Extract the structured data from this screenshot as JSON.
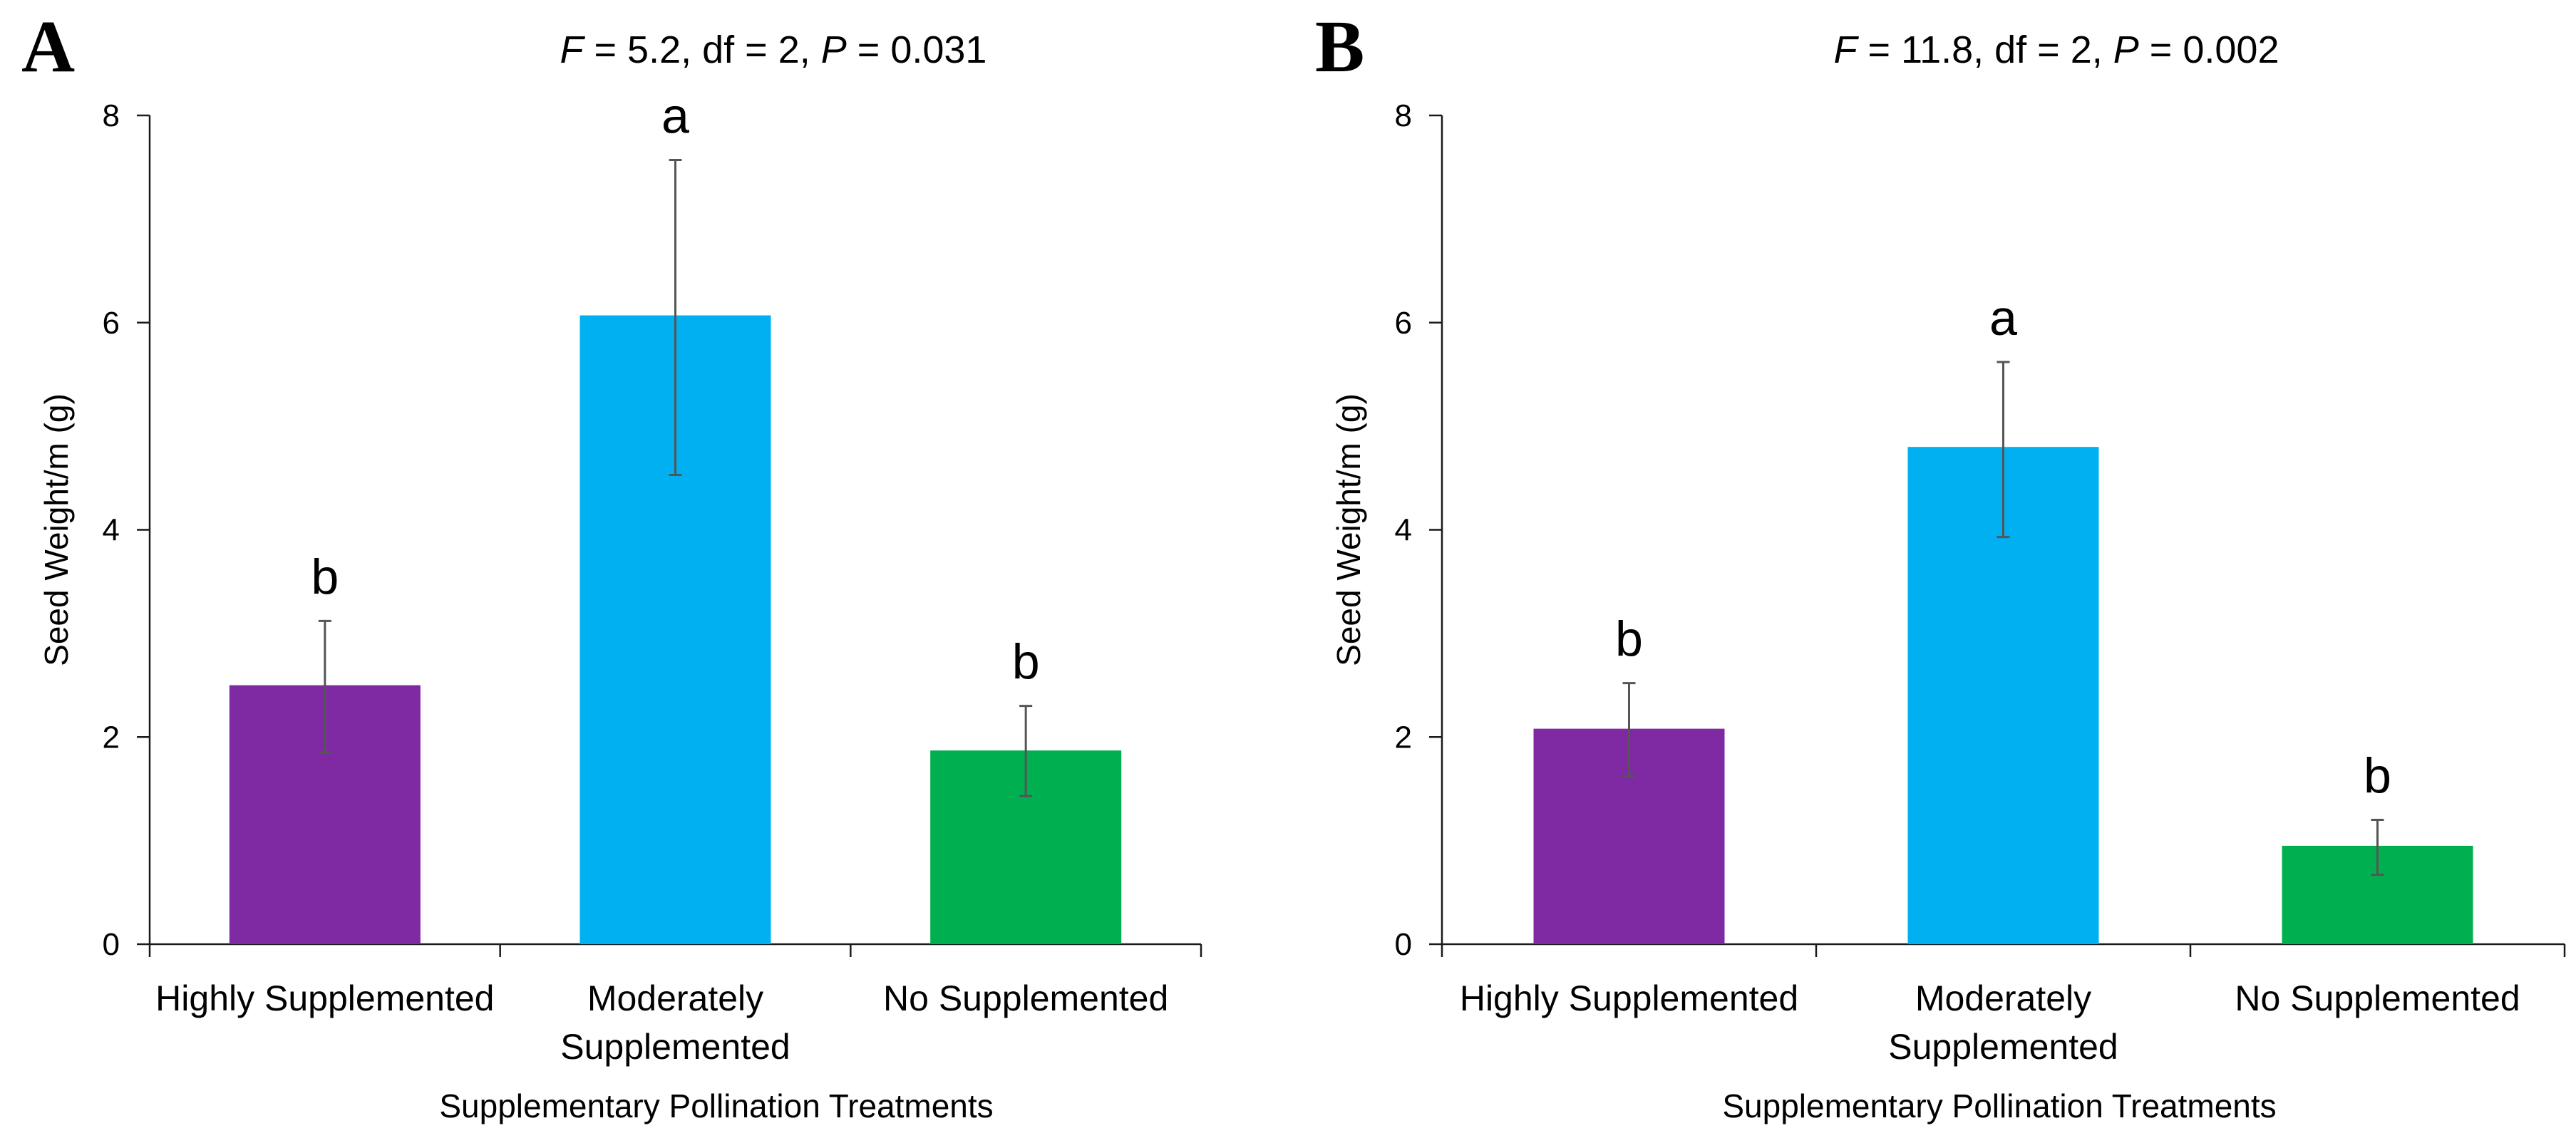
{
  "chart_data": [
    {
      "type": "bar",
      "panel_label": "A",
      "title_parts": {
        "f_symbol": "F",
        "f_value": " = 5.2, df = 2, ",
        "p_symbol": "P",
        "p_value": " = 0.031"
      },
      "xlabel": "Supplementary Pollination Treatments",
      "ylabel": "Seed Weight/m (g)",
      "ylim": [
        0,
        8
      ],
      "yticks": [
        "0",
        "2",
        "4",
        "6",
        "8"
      ],
      "categories": [
        [
          "Highly Supplemented"
        ],
        [
          "Moderately",
          "Supplemented"
        ],
        [
          "No Supplemented"
        ]
      ],
      "values": [
        2.5,
        6.07,
        1.87
      ],
      "error_low": [
        1.85,
        4.53,
        1.43
      ],
      "error_high": [
        3.12,
        7.57,
        2.3
      ],
      "letters": [
        "b",
        "a",
        "b"
      ],
      "colors": [
        "#7f2aa3",
        "#00b0f0",
        "#00b050"
      ]
    },
    {
      "type": "bar",
      "panel_label": "B",
      "title_parts": {
        "f_symbol": "F",
        "f_value": " = 11.8, df = 2, ",
        "p_symbol": "P",
        "p_value": " = 0.002"
      },
      "xlabel": "Supplementary Pollination Treatments",
      "ylabel": "Seed Weight/m (g)",
      "ylim": [
        0,
        8
      ],
      "yticks": [
        "0",
        "2",
        "4",
        "6",
        "8"
      ],
      "categories": [
        [
          "Highly Supplemented"
        ],
        [
          "Moderately",
          "Supplemented"
        ],
        [
          "No Supplemented"
        ]
      ],
      "values": [
        2.08,
        4.8,
        0.95
      ],
      "error_low": [
        1.62,
        3.93,
        0.67
      ],
      "error_high": [
        2.52,
        5.62,
        1.2
      ],
      "letters": [
        "b",
        "a",
        "b"
      ],
      "colors": [
        "#7f2aa3",
        "#00b0f0",
        "#00b050"
      ]
    }
  ]
}
